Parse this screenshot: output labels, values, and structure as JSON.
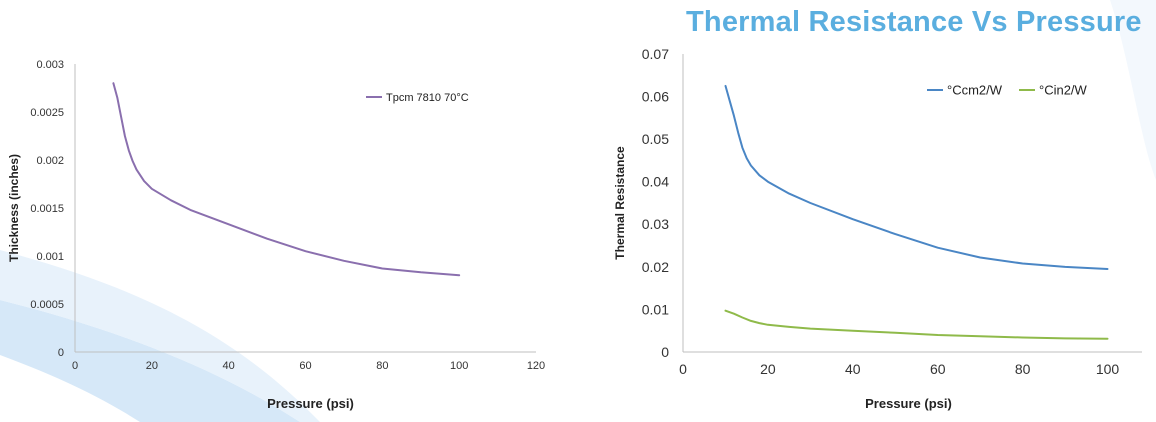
{
  "page_title": "Thermal Resistance Vs Pressure",
  "colors": {
    "title": "#5aaedf",
    "series_left": "#8a6fae",
    "series_ccm": "#4a86c5",
    "series_cin": "#8fba4a",
    "axis": "#bfbfbf",
    "text": "#333333",
    "decor": "#cfe4f6"
  },
  "chart_data": [
    {
      "type": "line",
      "title": "",
      "xlabel": "Pressure (psi)",
      "ylabel": "Thickness (inches)",
      "xlim": [
        0,
        120
      ],
      "ylim": [
        0,
        0.003
      ],
      "x_ticks": [
        "0",
        "20",
        "40",
        "60",
        "80",
        "100",
        "120"
      ],
      "y_ticks": [
        "0",
        "0.0005",
        "0.001",
        "0.0015",
        "0.002",
        "0.0025",
        "0.003"
      ],
      "legend_position": "top-right",
      "grid": false,
      "series": [
        {
          "name": "Tpcm 7810 70°C",
          "x": [
            10,
            11,
            12,
            13,
            14,
            15,
            16,
            18,
            20,
            25,
            30,
            40,
            50,
            60,
            70,
            80,
            90,
            100
          ],
          "y": [
            0.0028,
            0.00265,
            0.00245,
            0.00225,
            0.0021,
            0.00199,
            0.0019,
            0.00178,
            0.0017,
            0.00158,
            0.00148,
            0.00133,
            0.00118,
            0.00105,
            0.00095,
            0.00087,
            0.00083,
            0.0008
          ]
        }
      ]
    },
    {
      "type": "line",
      "title": "Thermal Resistance Vs Pressure",
      "xlabel": "Pressure (psi)",
      "ylabel": "Thermal Resistance",
      "xlim": [
        0,
        110
      ],
      "ylim": [
        0,
        0.07
      ],
      "x_ticks": [
        "0",
        "20",
        "40",
        "60",
        "80",
        "100"
      ],
      "y_ticks": [
        "0",
        "0.01",
        "0.02",
        "0.03",
        "0.04",
        "0.05",
        "0.06",
        "0.07"
      ],
      "legend_position": "top-right",
      "grid": false,
      "series": [
        {
          "name": "°Ccm2/W",
          "x": [
            10,
            11,
            12,
            13,
            14,
            15,
            16,
            18,
            20,
            25,
            30,
            40,
            50,
            60,
            70,
            80,
            90,
            100
          ],
          "y": [
            0.0625,
            0.059,
            0.0555,
            0.0515,
            0.048,
            0.0455,
            0.0438,
            0.0415,
            0.04,
            0.0372,
            0.035,
            0.0312,
            0.0277,
            0.0245,
            0.0222,
            0.0208,
            0.02,
            0.0195
          ]
        },
        {
          "name": "°Cin2/W",
          "x": [
            10,
            12,
            14,
            16,
            18,
            20,
            25,
            30,
            40,
            50,
            60,
            70,
            80,
            90,
            100
          ],
          "y": [
            0.0097,
            0.009,
            0.0081,
            0.0073,
            0.0068,
            0.0064,
            0.0059,
            0.0055,
            0.005,
            0.0045,
            0.004,
            0.0037,
            0.0034,
            0.0032,
            0.0031
          ]
        }
      ]
    }
  ]
}
